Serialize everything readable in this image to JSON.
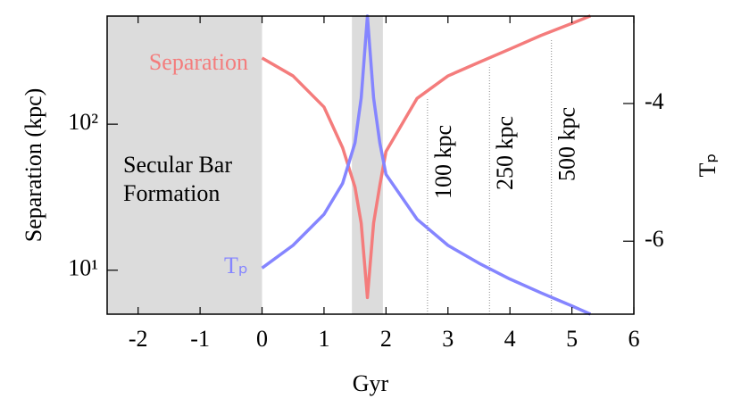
{
  "chart_data": {
    "type": "line",
    "x": [
      0,
      0.5,
      1.0,
      1.3,
      1.5,
      1.6,
      1.7,
      1.8,
      1.9,
      2.0,
      2.5,
      3.0,
      3.5,
      4.0,
      4.5,
      5.0,
      5.3
    ],
    "series": [
      {
        "name": "Separation",
        "color": "#f47c7c",
        "values": [
          284,
          214,
          131,
          69,
          37,
          21,
          6.5,
          21,
          38,
          65,
          150,
          214,
          265,
          327,
          405,
          490,
          552
        ]
      },
      {
        "name": "Tₚ",
        "color": "#8585ff",
        "axis": "y2",
        "values": [
          -6.39,
          -6.06,
          -5.61,
          -5.16,
          -4.57,
          -3.92,
          -2.73,
          -3.92,
          -4.57,
          -5.03,
          -5.68,
          -6.06,
          -6.32,
          -6.55,
          -6.75,
          -6.94,
          -7.06
        ]
      }
    ],
    "xlabel": "Gyr",
    "ylabel": "Separation (kpc)",
    "y2label": "Tₚ",
    "xlim": [
      -2.5,
      6
    ],
    "xticks": [
      -2,
      -1,
      0,
      1,
      2,
      3,
      4,
      5,
      6
    ],
    "ylim": [
      5,
      550
    ],
    "yscale": "log",
    "yticks": [
      {
        "value": 10,
        "label": "10¹"
      },
      {
        "value": 100,
        "label": "10²"
      }
    ],
    "y2lim": [
      -7.06,
      -2.73
    ],
    "y2ticks": [
      -6,
      -4
    ],
    "shaded": [
      {
        "range": [
          -2.5,
          0
        ],
        "label": "Secular Bar Formation"
      },
      {
        "range": [
          1.45,
          1.95
        ]
      }
    ],
    "annotations": [
      {
        "x": 2.67,
        "label": "100 kpc"
      },
      {
        "x": 3.67,
        "label": "250 kpc"
      },
      {
        "x": 4.67,
        "label": "500 kpc"
      }
    ]
  }
}
